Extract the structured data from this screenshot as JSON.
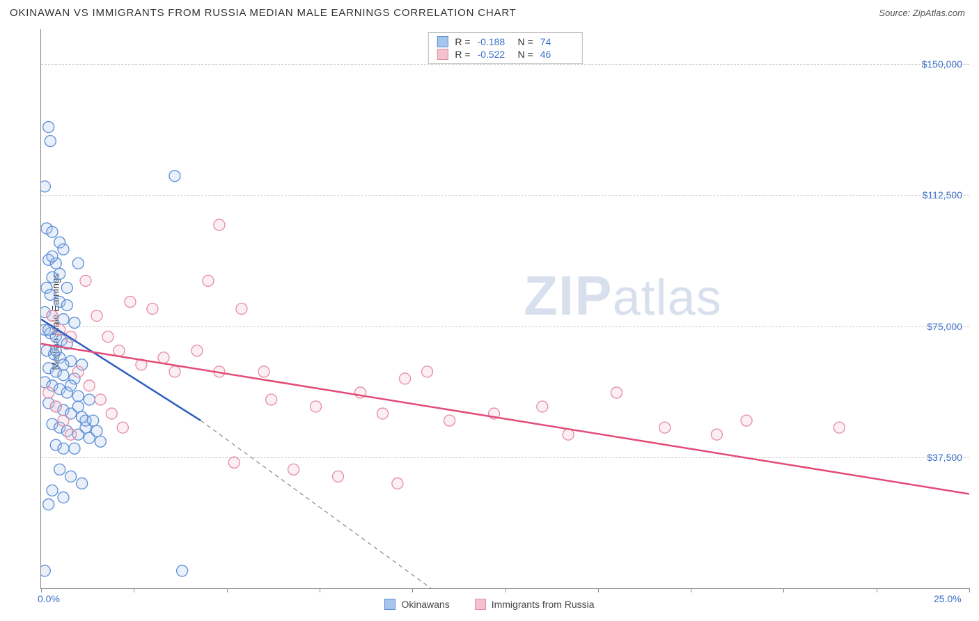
{
  "header": {
    "title": "OKINAWAN VS IMMIGRANTS FROM RUSSIA MEDIAN MALE EARNINGS CORRELATION CHART",
    "source_label": "Source:",
    "source_value": "ZipAtlas.com"
  },
  "watermark": {
    "part1": "ZIP",
    "part2": "atlas"
  },
  "chart": {
    "type": "scatter",
    "ylabel": "Median Male Earnings",
    "xlim": [
      0,
      25
    ],
    "ylim": [
      0,
      160000
    ],
    "x_tick_positions": [
      0,
      2.5,
      5,
      7.5,
      10,
      12.5,
      15,
      17.5,
      20,
      22.5,
      25
    ],
    "x_axis_labels": [
      {
        "pos": 0,
        "text": "0.0%"
      },
      {
        "pos": 25,
        "text": "25.0%"
      }
    ],
    "y_grid": [
      {
        "val": 37500,
        "label": "$37,500"
      },
      {
        "val": 75000,
        "label": "$75,000"
      },
      {
        "val": 112500,
        "label": "$112,500"
      },
      {
        "val": 150000,
        "label": "$150,000"
      }
    ],
    "background_color": "#ffffff",
    "grid_color": "#cccccc",
    "axis_color": "#888888",
    "label_color": "#3b6fc9",
    "marker_radius": 8,
    "series": [
      {
        "name": "Okinawans",
        "color_stroke": "#5b8dd6",
        "color_fill": "#a7c4ec",
        "trend_color": "#2e5fc0",
        "trend_solid": {
          "x1": 0,
          "y1": 77000,
          "x2": 4.3,
          "y2": 48000
        },
        "trend_dash": {
          "x1": 4.3,
          "y1": 48000,
          "x2": 10.5,
          "y2": 0
        },
        "stats": {
          "R": "-0.188",
          "N": "74"
        },
        "points": [
          [
            0.2,
            132000
          ],
          [
            0.25,
            128000
          ],
          [
            0.1,
            115000
          ],
          [
            3.6,
            118000
          ],
          [
            0.15,
            103000
          ],
          [
            0.3,
            102000
          ],
          [
            0.5,
            99000
          ],
          [
            0.6,
            97000
          ],
          [
            0.2,
            94000
          ],
          [
            0.4,
            93000
          ],
          [
            1.0,
            93000
          ],
          [
            0.3,
            89000
          ],
          [
            0.15,
            86000
          ],
          [
            0.25,
            84000
          ],
          [
            0.5,
            82000
          ],
          [
            0.7,
            81000
          ],
          [
            0.1,
            79000
          ],
          [
            0.3,
            78000
          ],
          [
            0.6,
            77000
          ],
          [
            0.9,
            76000
          ],
          [
            0.1,
            74000
          ],
          [
            0.25,
            73000
          ],
          [
            0.4,
            72000
          ],
          [
            0.55,
            71000
          ],
          [
            0.7,
            70000
          ],
          [
            0.15,
            68000
          ],
          [
            0.35,
            67000
          ],
          [
            0.5,
            66000
          ],
          [
            0.8,
            65000
          ],
          [
            1.1,
            64000
          ],
          [
            0.2,
            63000
          ],
          [
            0.4,
            62000
          ],
          [
            0.6,
            61000
          ],
          [
            0.9,
            60000
          ],
          [
            0.1,
            59000
          ],
          [
            0.3,
            58000
          ],
          [
            0.5,
            57000
          ],
          [
            0.7,
            56000
          ],
          [
            1.0,
            55000
          ],
          [
            1.3,
            54000
          ],
          [
            0.2,
            53000
          ],
          [
            0.4,
            52000
          ],
          [
            0.6,
            51000
          ],
          [
            0.8,
            50000
          ],
          [
            1.1,
            49000
          ],
          [
            1.4,
            48000
          ],
          [
            0.3,
            47000
          ],
          [
            0.5,
            46000
          ],
          [
            0.7,
            45000
          ],
          [
            1.0,
            44000
          ],
          [
            1.3,
            43000
          ],
          [
            1.6,
            42000
          ],
          [
            0.4,
            41000
          ],
          [
            0.6,
            40000
          ],
          [
            0.9,
            40000
          ],
          [
            1.2,
            46000
          ],
          [
            1.5,
            45000
          ],
          [
            0.5,
            34000
          ],
          [
            0.8,
            32000
          ],
          [
            1.1,
            30000
          ],
          [
            0.3,
            28000
          ],
          [
            0.6,
            26000
          ],
          [
            0.2,
            24000
          ],
          [
            0.1,
            5000
          ],
          [
            3.8,
            5000
          ],
          [
            0.3,
            95000
          ],
          [
            0.5,
            90000
          ],
          [
            0.7,
            86000
          ],
          [
            0.2,
            74000
          ],
          [
            0.4,
            68000
          ],
          [
            0.6,
            64000
          ],
          [
            0.8,
            58000
          ],
          [
            1.0,
            52000
          ],
          [
            1.2,
            48000
          ]
        ]
      },
      {
        "name": "Immigrants from Russia",
        "color_stroke": "#e68aa3",
        "color_fill": "#f4c1cf",
        "trend_color": "#e34b77",
        "trend_solid": {
          "x1": 0,
          "y1": 70000,
          "x2": 25,
          "y2": 27000
        },
        "trend_dash": null,
        "stats": {
          "R": "-0.522",
          "N": "46"
        },
        "points": [
          [
            0.3,
            78000
          ],
          [
            0.5,
            74000
          ],
          [
            0.8,
            72000
          ],
          [
            1.2,
            88000
          ],
          [
            1.5,
            78000
          ],
          [
            1.8,
            72000
          ],
          [
            2.1,
            68000
          ],
          [
            2.4,
            82000
          ],
          [
            2.7,
            64000
          ],
          [
            3.0,
            80000
          ],
          [
            3.3,
            66000
          ],
          [
            3.6,
            62000
          ],
          [
            4.8,
            104000
          ],
          [
            4.5,
            88000
          ],
          [
            4.2,
            68000
          ],
          [
            4.8,
            62000
          ],
          [
            5.4,
            80000
          ],
          [
            5.2,
            36000
          ],
          [
            6.0,
            62000
          ],
          [
            6.2,
            54000
          ],
          [
            6.8,
            34000
          ],
          [
            7.4,
            52000
          ],
          [
            8.0,
            32000
          ],
          [
            8.6,
            56000
          ],
          [
            9.2,
            50000
          ],
          [
            9.8,
            60000
          ],
          [
            9.6,
            30000
          ],
          [
            10.4,
            62000
          ],
          [
            11.0,
            48000
          ],
          [
            12.2,
            50000
          ],
          [
            13.5,
            52000
          ],
          [
            14.2,
            44000
          ],
          [
            15.5,
            56000
          ],
          [
            16.8,
            46000
          ],
          [
            18.2,
            44000
          ],
          [
            19.0,
            48000
          ],
          [
            21.5,
            46000
          ],
          [
            0.2,
            56000
          ],
          [
            0.4,
            52000
          ],
          [
            0.6,
            48000
          ],
          [
            0.8,
            44000
          ],
          [
            1.0,
            62000
          ],
          [
            1.3,
            58000
          ],
          [
            1.6,
            54000
          ],
          [
            1.9,
            50000
          ],
          [
            2.2,
            46000
          ]
        ]
      }
    ],
    "stats_box": {
      "R_label": "R  =",
      "N_label": "N  ="
    },
    "legend_bottom": true
  }
}
